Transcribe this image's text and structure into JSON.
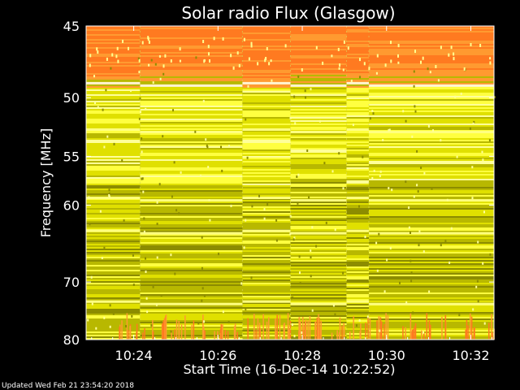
{
  "chart_data": {
    "type": "heatmap",
    "title": "Solar radio Flux (Glasgow)",
    "xlabel": "Start Time (16-Dec-14 10:22:52)",
    "ylabel": "Frequency [MHz]",
    "x_ticks": [
      "10:24",
      "10:26",
      "10:28",
      "10:30",
      "10:32"
    ],
    "x_tick_minutes": [
      24,
      26,
      28,
      30,
      32
    ],
    "x_range_minutes": [
      22.87,
      32.55
    ],
    "y_ticks": [
      "45",
      "50",
      "55",
      "60",
      "70",
      "80"
    ],
    "y_tick_values": [
      45,
      50,
      55,
      60,
      70,
      80
    ],
    "ylim": [
      45,
      80
    ],
    "y_scale": "reciprocal",
    "colormap": [
      "#8c8c00",
      "#b8b800",
      "#e0e000",
      "#ffff40",
      "#ffff9a",
      "#ff9a30",
      "#ff7a20"
    ],
    "segment_start_minutes": [
      22.87,
      24.15,
      26.58,
      27.72,
      29.05,
      29.58
    ],
    "bright_lines_mhz": [
      48.9,
      52.6,
      59.2,
      63.0,
      73.1
    ],
    "orange_band_mhz": [
      45.0,
      52.2
    ]
  },
  "footer": {
    "updated": "Updated Wed Feb 21 23:54:20 2018"
  }
}
